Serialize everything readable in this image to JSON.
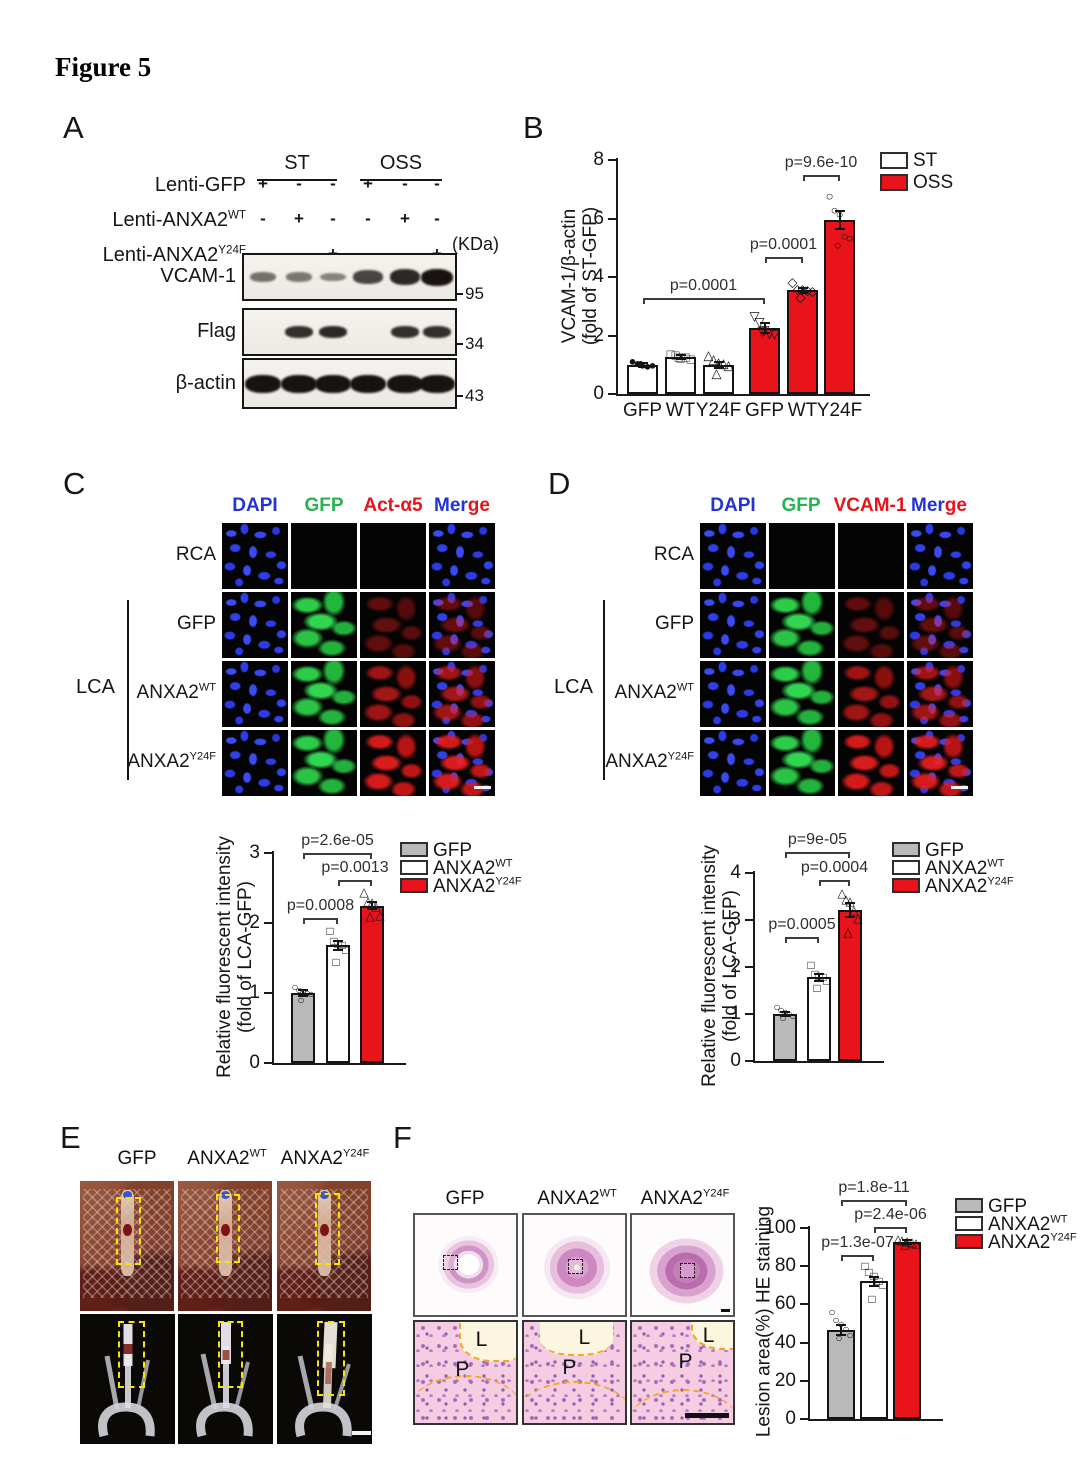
{
  "figure_title": "Figure 5",
  "colors": {
    "red": "#e8131b",
    "gray": "#b9b9b9",
    "white": "#ffffff",
    "blue_text": "#2433d6",
    "green_text": "#27b34f",
    "red_text": "#e8131b",
    "yellow_annotation": "#f7e400",
    "orange_annotation": "#f4a41e"
  },
  "panel_a": {
    "label": "A",
    "group_headers": [
      "ST",
      "OSS"
    ],
    "condition_rows": [
      {
        "label": {
          "text": "Lenti-GFP",
          "sup": ""
        },
        "values": [
          "+",
          "-",
          "-",
          "+",
          "-",
          "-"
        ]
      },
      {
        "label": {
          "text": "Lenti-ANXA2",
          "sup": "WT"
        },
        "values": [
          "-",
          "+",
          "-",
          "-",
          "+",
          "-"
        ]
      },
      {
        "label": {
          "text": "Lenti-ANXA2",
          "sup": "Y24F"
        },
        "values": [
          "-",
          "-",
          "+",
          "-",
          "-",
          "+"
        ]
      }
    ],
    "kda_header": "(KDa)",
    "blots": [
      {
        "label": "VCAM-1",
        "kda": "95",
        "band_intensities": [
          0.35,
          0.3,
          0.22,
          0.65,
          0.85,
          1.0
        ]
      },
      {
        "label": "Flag",
        "kda": "34",
        "band_intensities": [
          0,
          0.8,
          0.85,
          0,
          0.8,
          0.8
        ]
      },
      {
        "label": "β-actin",
        "kda": "43",
        "band_intensities": [
          1,
          1,
          1,
          1,
          1,
          1
        ]
      }
    ]
  },
  "panel_b": {
    "label": "B"
  },
  "panel_c": {
    "label": "C",
    "column_headers": [
      {
        "parts": [
          {
            "text": "DAPI",
            "color": "blue_text"
          }
        ]
      },
      {
        "parts": [
          {
            "text": "GFP",
            "color": "green_text"
          }
        ]
      },
      {
        "parts": [
          {
            "text": "Act-α5",
            "color": "red_text"
          }
        ]
      },
      {
        "parts": [
          {
            "text": "Mer",
            "color": "blue_text"
          },
          {
            "text": "ge",
            "color": "red_text"
          }
        ]
      }
    ],
    "row_labels": [
      {
        "text": "RCA",
        "sup": ""
      },
      {
        "text": "GFP",
        "sup": ""
      },
      {
        "text": "ANXA2",
        "sup": "WT"
      },
      {
        "text": "ANXA2",
        "sup": "Y24F"
      }
    ],
    "bracket_label": "LCA",
    "cells": [
      [
        "dapi",
        "empty",
        "empty",
        "merge-dapi"
      ],
      [
        "dapi",
        "gfp",
        "red-weak",
        "merge-weak"
      ],
      [
        "dapi",
        "gfp",
        "red-med",
        "merge-med"
      ],
      [
        "dapi",
        "gfp",
        "red-strong",
        "merge-strong"
      ]
    ]
  },
  "panel_d": {
    "label": "D",
    "column_headers": [
      {
        "parts": [
          {
            "text": "DAPI",
            "color": "blue_text"
          }
        ]
      },
      {
        "parts": [
          {
            "text": "GFP",
            "color": "green_text"
          }
        ]
      },
      {
        "parts": [
          {
            "text": "VCAM-1",
            "color": "red_text"
          }
        ]
      },
      {
        "parts": [
          {
            "text": "Mer",
            "color": "blue_text"
          },
          {
            "text": "ge",
            "color": "red_text"
          }
        ]
      }
    ],
    "row_labels": [
      {
        "text": "RCA",
        "sup": ""
      },
      {
        "text": "GFP",
        "sup": ""
      },
      {
        "text": "ANXA2",
        "sup": "WT"
      },
      {
        "text": "ANXA2",
        "sup": "Y24F"
      }
    ],
    "bracket_label": "LCA",
    "cells": [
      [
        "dapi",
        "empty",
        "empty",
        "merge-dapi"
      ],
      [
        "dapi",
        "gfp",
        "red-weak",
        "merge-weak"
      ],
      [
        "dapi",
        "gfp",
        "red-med",
        "merge-med"
      ],
      [
        "dapi",
        "gfp",
        "red-strong",
        "merge-strong"
      ]
    ]
  },
  "panel_e": {
    "label": "E",
    "column_headers": [
      {
        "text": "GFP",
        "sup": ""
      },
      {
        "text": "ANXA2",
        "sup": "WT"
      },
      {
        "text": "ANXA2",
        "sup": "Y24F"
      }
    ]
  },
  "panel_f": {
    "label": "F",
    "column_headers": [
      {
        "text": "GFP",
        "sup": ""
      },
      {
        "text": "ANXA2",
        "sup": "WT"
      },
      {
        "text": "ANXA2",
        "sup": "Y24F"
      }
    ],
    "lumen_label": "L",
    "plaque_label": "P"
  },
  "chart_data": [
    {
      "id": "B",
      "type": "bar",
      "ylabel_lines": [
        "VCAM-1/β-actin",
        "(fold of ST-GFP)"
      ],
      "ylim": [
        0,
        8
      ],
      "yticks": [
        0,
        2,
        4,
        6,
        8
      ],
      "categories": [
        "GFP",
        "WT",
        "Y24F",
        "GFP",
        "WT",
        "Y24F"
      ],
      "series_group": [
        "ST",
        "ST",
        "ST",
        "OSS",
        "OSS",
        "OSS"
      ],
      "values": [
        1.0,
        1.25,
        1.0,
        2.25,
        3.55,
        5.95
      ],
      "errors": [
        0.06,
        0.07,
        0.1,
        0.18,
        0.08,
        0.3
      ],
      "bar_colors": [
        "white",
        "white",
        "white",
        "red",
        "red",
        "red"
      ],
      "markers": [
        "circle-filled",
        "square-open",
        "triangle-open",
        "triangle-down-open",
        "diamond-open",
        "circle-open"
      ],
      "points": [
        [
          1.12,
          1.05,
          0.98,
          0.95,
          1.0,
          1.05
        ],
        [
          1.38,
          1.32,
          1.22,
          1.25,
          1.18,
          1.28
        ],
        [
          1.35,
          1.18,
          1.1,
          1.05,
          0.98,
          0.72
        ],
        [
          2.68,
          2.45,
          2.2,
          2.1,
          2.05,
          2.15
        ],
        [
          3.82,
          3.6,
          3.58,
          3.55,
          3.52,
          3.3
        ],
        [
          6.78,
          6.3,
          6.15,
          5.4,
          5.35,
          5.1
        ]
      ],
      "pvalues": [
        {
          "text": "p=0.0001",
          "from": 0,
          "to": 3
        },
        {
          "text": "p=0.0001",
          "from": 3,
          "to": 4
        },
        {
          "text": "p=9.6e-10",
          "from": 4,
          "to": 5
        }
      ],
      "legend": [
        {
          "label": "ST",
          "sup": "",
          "color": "white"
        },
        {
          "label": "OSS",
          "sup": "",
          "color": "red"
        }
      ],
      "legend_position": "top-right",
      "grid": false
    },
    {
      "id": "C",
      "type": "bar",
      "ylabel_lines": [
        "Relative fluorescent intensity",
        "(fold of LCA-GFP)"
      ],
      "ylim": [
        0,
        3
      ],
      "yticks": [
        0,
        1,
        2,
        3
      ],
      "categories": [
        "",
        "",
        ""
      ],
      "series_group": [
        "GFP",
        "ANXA2-WT",
        "ANXA2-Y24F"
      ],
      "values": [
        1.0,
        1.68,
        2.25
      ],
      "errors": [
        0.04,
        0.06,
        0.05
      ],
      "bar_colors": [
        "gray",
        "white",
        "red"
      ],
      "markers": [
        "circle-open",
        "square-open",
        "triangle-open"
      ],
      "points": [
        [
          1.08,
          1.05,
          1.02,
          1.0,
          0.98,
          0.9
        ],
        [
          1.88,
          1.75,
          1.7,
          1.68,
          1.62,
          1.45
        ],
        [
          2.45,
          2.32,
          2.3,
          2.25,
          2.12,
          2.1
        ]
      ],
      "pvalues": [
        {
          "text": "p=0.0008",
          "from": 0,
          "to": 1
        },
        {
          "text": "p=2.6e-05",
          "from": 0,
          "to": 2
        },
        {
          "text": "p=0.0013",
          "from": 1,
          "to": 2
        }
      ],
      "legend": [
        {
          "label": "GFP",
          "sup": "",
          "color": "gray"
        },
        {
          "label": "ANXA2",
          "sup": "WT",
          "color": "white"
        },
        {
          "label": "ANXA2",
          "sup": "Y24F",
          "color": "red"
        }
      ],
      "legend_position": "top-right",
      "grid": false
    },
    {
      "id": "D",
      "type": "bar",
      "ylabel_lines": [
        "Relative fluorescent intensity",
        "(fold of LCA-GFP)"
      ],
      "ylim": [
        0,
        4
      ],
      "yticks": [
        0,
        1,
        2,
        3,
        4
      ],
      "categories": [
        "",
        "",
        ""
      ],
      "series_group": [
        "GFP",
        "ANXA2-WT",
        "ANXA2-Y24F"
      ],
      "values": [
        1.0,
        1.78,
        3.22
      ],
      "errors": [
        0.05,
        0.08,
        0.15
      ],
      "bar_colors": [
        "gray",
        "white",
        "red"
      ],
      "markers": [
        "circle-open",
        "square-open",
        "triangle-open"
      ],
      "points": [
        [
          1.15,
          1.08,
          1.05,
          1.0,
          0.95,
          0.92
        ],
        [
          2.05,
          1.85,
          1.8,
          1.78,
          1.7,
          1.55
        ],
        [
          3.58,
          3.45,
          3.4,
          3.22,
          3.05,
          2.75
        ]
      ],
      "pvalues": [
        {
          "text": "p=0.0005",
          "from": 0,
          "to": 1
        },
        {
          "text": "p=9e-05",
          "from": 0,
          "to": 2
        },
        {
          "text": "p=0.0004",
          "from": 1,
          "to": 2
        }
      ],
      "legend": [
        {
          "label": "GFP",
          "sup": "",
          "color": "gray"
        },
        {
          "label": "ANXA2",
          "sup": "WT",
          "color": "white"
        },
        {
          "label": "ANXA2",
          "sup": "Y24F",
          "color": "red"
        }
      ],
      "legend_position": "top-right",
      "grid": false
    },
    {
      "id": "F",
      "type": "bar",
      "ylabel_lines": [
        "Lesion area(%) HE staining"
      ],
      "ylim": [
        0,
        100
      ],
      "yticks": [
        0,
        20,
        40,
        60,
        80,
        100
      ],
      "categories": [
        "",
        "",
        ""
      ],
      "series_group": [
        "GFP",
        "ANXA2-WT",
        "ANXA2-Y24F"
      ],
      "values": [
        46.5,
        72,
        92.5
      ],
      "errors": [
        2.5,
        2.5,
        1
      ],
      "bar_colors": [
        "gray",
        "white",
        "red"
      ],
      "markers": [
        "circle-open",
        "square-open",
        "triangle-open"
      ],
      "points": [
        [
          56,
          52,
          50,
          47,
          44,
          42.5
        ],
        [
          80,
          77,
          75,
          72,
          70,
          63
        ],
        [
          94,
          93.5,
          93,
          92.5,
          92,
          91.5
        ]
      ],
      "pvalues": [
        {
          "text": "p=1.3e-07",
          "from": 0,
          "to": 1
        },
        {
          "text": "p=1.8e-11",
          "from": 0,
          "to": 2
        },
        {
          "text": "p=2.4e-06",
          "from": 1,
          "to": 2
        }
      ],
      "legend": [
        {
          "label": "GFP",
          "sup": "",
          "color": "gray"
        },
        {
          "label": "ANXA2",
          "sup": "WT",
          "color": "white"
        },
        {
          "label": "ANXA2",
          "sup": "Y24F",
          "color": "red"
        }
      ],
      "legend_position": "top-right",
      "grid": false
    }
  ]
}
